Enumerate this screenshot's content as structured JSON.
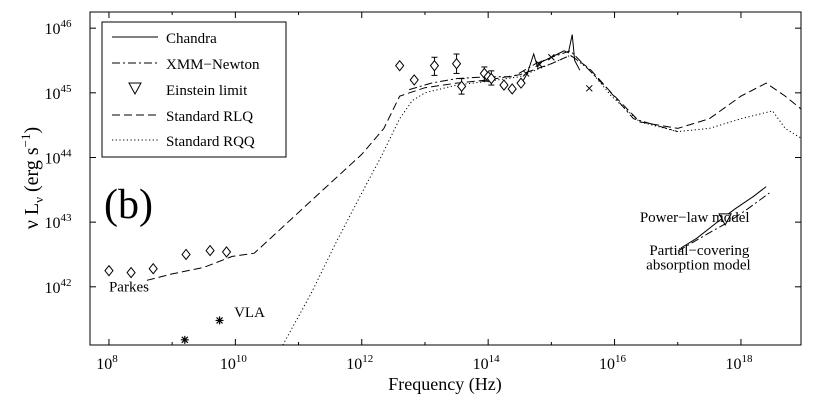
{
  "chart_data": {
    "type": "line",
    "label_b": "(b)",
    "xlabel": "Frequency (Hz)",
    "ylabel": {
      "base": "ν L",
      "sub": "ν",
      "unit_open": " (erg s",
      "sup": "−1",
      "unit_close": ")"
    },
    "x_log_range": [
      7.7,
      18.95
    ],
    "y_log_range": [
      41.1,
      46.25
    ],
    "x_ticks": [
      {
        "exp": 8,
        "base": "10",
        "sup": "8"
      },
      {
        "exp": 10,
        "base": "10",
        "sup": "10"
      },
      {
        "exp": 12,
        "base": "10",
        "sup": "12"
      },
      {
        "exp": 14,
        "base": "10",
        "sup": "14"
      },
      {
        "exp": 16,
        "base": "10",
        "sup": "16"
      },
      {
        "exp": 18,
        "base": "10",
        "sup": "18"
      }
    ],
    "y_ticks": [
      {
        "exp": 42,
        "base": "10",
        "sup": "42"
      },
      {
        "exp": 43,
        "base": "10",
        "sup": "43"
      },
      {
        "exp": 44,
        "base": "10",
        "sup": "44"
      },
      {
        "exp": 45,
        "base": "10",
        "sup": "45"
      },
      {
        "exp": 46,
        "base": "10",
        "sup": "46"
      }
    ],
    "legend": [
      {
        "label": "Chandra",
        "style": "solid"
      },
      {
        "label": "XMM−Newton",
        "style": "dashdot"
      },
      {
        "label": "Einstein limit",
        "style": "triangle"
      },
      {
        "label": "Standard RLQ",
        "style": "dashed"
      },
      {
        "label": "Standard RQQ",
        "style": "dotted"
      }
    ],
    "annotations": [
      {
        "text": "Parkes",
        "x": 8.0,
        "y": 41.93
      },
      {
        "text": "VLA",
        "x": 9.98,
        "y": 41.53
      },
      {
        "text": "Power−law model",
        "x": 16.4,
        "y": 43.0
      },
      {
        "text": "Partial−covering",
        "x": 16.55,
        "y": 42.49
      },
      {
        "text": "absorption model",
        "x": 16.5,
        "y": 42.27
      }
    ],
    "series": [
      {
        "name": "Standard RLQ",
        "style": "dashed",
        "points": [
          [
            8.6,
            42.1
          ],
          [
            9.0,
            42.2
          ],
          [
            9.5,
            42.3
          ],
          [
            9.95,
            42.47
          ],
          [
            10.3,
            42.52
          ],
          [
            11.5,
            43.6
          ],
          [
            12.0,
            44.05
          ],
          [
            12.35,
            44.45
          ],
          [
            12.6,
            44.95
          ],
          [
            13.0,
            45.08
          ],
          [
            13.5,
            45.15
          ],
          [
            14.0,
            45.2
          ],
          [
            14.5,
            45.28
          ],
          [
            15.0,
            45.45
          ],
          [
            15.3,
            45.58
          ],
          [
            15.6,
            45.38
          ],
          [
            15.95,
            45.0
          ],
          [
            16.4,
            44.55
          ],
          [
            17.0,
            44.45
          ],
          [
            17.5,
            44.6
          ],
          [
            18.0,
            44.95
          ],
          [
            18.4,
            45.15
          ],
          [
            18.7,
            44.95
          ],
          [
            18.95,
            44.75
          ]
        ]
      },
      {
        "name": "Standard RQQ",
        "style": "dotted",
        "points": [
          [
            10.75,
            41.1
          ],
          [
            11.2,
            41.9
          ],
          [
            11.6,
            42.7
          ],
          [
            12.0,
            43.45
          ],
          [
            12.3,
            44.0
          ],
          [
            12.6,
            44.6
          ],
          [
            12.8,
            44.88
          ],
          [
            13.0,
            45.0
          ],
          [
            13.5,
            45.12
          ],
          [
            14.0,
            45.18
          ],
          [
            14.5,
            45.25
          ],
          [
            15.0,
            45.45
          ],
          [
            15.3,
            45.58
          ],
          [
            15.6,
            45.36
          ],
          [
            15.95,
            44.95
          ],
          [
            16.4,
            44.55
          ],
          [
            17.0,
            44.4
          ],
          [
            17.5,
            44.45
          ],
          [
            18.0,
            44.6
          ],
          [
            18.5,
            44.72
          ],
          [
            18.7,
            44.45
          ],
          [
            18.95,
            44.3
          ]
        ]
      },
      {
        "name": "XMM−Newton",
        "style": "dashdot",
        "points": [
          [
            12.75,
            45.05
          ],
          [
            13.1,
            45.15
          ],
          [
            13.5,
            45.22
          ],
          [
            14.0,
            45.25
          ],
          [
            14.4,
            45.25
          ],
          [
            14.75,
            45.45
          ],
          [
            15.0,
            45.55
          ],
          [
            15.3,
            45.65
          ],
          [
            15.45,
            45.5
          ],
          [
            15.9,
            45.05
          ],
          [
            16.3,
            44.6
          ],
          [
            17.0,
            44.4
          ]
        ]
      },
      {
        "name": "Chandra",
        "style": "solid",
        "points": [
          [
            14.5,
            45.1
          ],
          [
            14.62,
            45.3
          ],
          [
            14.72,
            45.6
          ],
          [
            14.78,
            45.4
          ],
          [
            14.85,
            45.48
          ],
          [
            15.0,
            45.55
          ],
          [
            15.1,
            45.6
          ],
          [
            15.2,
            45.65
          ],
          [
            15.27,
            45.62
          ],
          [
            15.33,
            45.9
          ],
          [
            15.37,
            45.5
          ],
          [
            15.45,
            45.35
          ]
        ]
      },
      {
        "name": "Chandra power-law model",
        "style": "solid",
        "points": [
          [
            17.05,
            42.6
          ],
          [
            17.3,
            42.75
          ],
          [
            17.6,
            42.98
          ],
          [
            17.9,
            43.2
          ],
          [
            18.2,
            43.4
          ],
          [
            18.4,
            43.55
          ]
        ]
      },
      {
        "name": "XMM−Newton partial-covering model",
        "style": "dashdot",
        "points": [
          [
            17.0,
            42.55
          ],
          [
            17.4,
            42.78
          ],
          [
            17.8,
            43.0
          ],
          [
            18.1,
            43.2
          ],
          [
            18.45,
            43.45
          ]
        ]
      }
    ],
    "diamonds": [
      [
        8.0,
        42.25
      ],
      [
        8.35,
        42.22
      ],
      [
        8.7,
        42.28
      ],
      [
        9.22,
        42.5
      ],
      [
        9.6,
        42.56
      ],
      [
        9.86,
        42.54
      ],
      [
        12.6,
        45.42
      ],
      [
        12.83,
        45.2
      ],
      [
        13.15,
        45.42
      ],
      [
        13.5,
        45.45
      ],
      [
        13.58,
        45.1
      ],
      [
        13.94,
        45.3
      ],
      [
        14.0,
        45.25
      ],
      [
        14.05,
        45.22
      ],
      [
        14.25,
        45.12
      ],
      [
        14.38,
        45.06
      ],
      [
        14.52,
        45.15
      ]
    ],
    "error_bars": [
      [
        13.15,
        45.27,
        45.55
      ],
      [
        13.5,
        45.3,
        45.6
      ],
      [
        13.58,
        44.98,
        45.22
      ],
      [
        13.94,
        45.18,
        45.4
      ],
      [
        14.05,
        45.12,
        45.34
      ]
    ],
    "crosses": [
      [
        14.6,
        45.3
      ],
      [
        14.8,
        45.45
      ],
      [
        15.0,
        45.55
      ],
      [
        15.6,
        45.07
      ]
    ],
    "stars": [
      [
        9.2,
        41.18
      ],
      [
        9.75,
        41.48
      ]
    ],
    "triangles": [
      [
        17.75,
        43.05
      ]
    ]
  }
}
